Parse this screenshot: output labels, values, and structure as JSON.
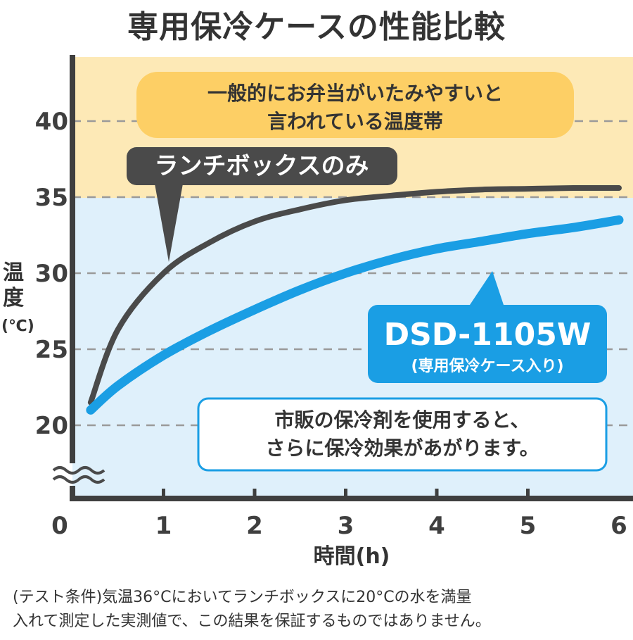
{
  "chart_data": {
    "type": "line",
    "title": "専用保冷ケースの性能比較",
    "xlabel": "時間(h)",
    "ylabel": [
      "温",
      "度",
      "(℃)"
    ],
    "xlim": [
      0,
      6
    ],
    "ylim": [
      20,
      45
    ],
    "x_ticks": [
      "0",
      "1",
      "2",
      "3",
      "4",
      "5",
      "6"
    ],
    "y_ticks": [
      "20",
      "25",
      "30",
      "35",
      "40"
    ],
    "grid": true,
    "zones": [
      {
        "name": "danger",
        "from": 35,
        "to": 45,
        "color": "#fde9b6",
        "label_lines": [
          "一般的にお弁当がいたみやすいと",
          "言われている温度帯"
        ]
      },
      {
        "name": "safe",
        "from": 20,
        "to": 35,
        "color": "#dff0fb"
      }
    ],
    "series": [
      {
        "name": "ランチボックスのみ",
        "color": "#4a4a4a",
        "x": [
          0.2,
          0.5,
          1,
          1.5,
          2,
          2.5,
          3,
          3.5,
          4,
          4.5,
          5,
          5.5,
          6
        ],
        "y": [
          21.5,
          26.3,
          30.0,
          32.0,
          33.4,
          34.2,
          34.8,
          35.1,
          35.35,
          35.5,
          35.55,
          35.6,
          35.6
        ]
      },
      {
        "name": "DSD-1105W",
        "sub": "(専用保冷ケース入り)",
        "color": "#1a9ee4",
        "x": [
          0.2,
          0.5,
          1,
          1.5,
          2,
          2.5,
          3,
          3.5,
          4,
          4.5,
          5,
          5.5,
          6
        ],
        "y": [
          21.0,
          22.6,
          24.6,
          26.2,
          27.6,
          28.9,
          30.0,
          30.9,
          31.6,
          32.1,
          32.6,
          33.0,
          33.5
        ]
      }
    ],
    "annotations": {
      "note_lines": [
        "市販の保冷剤を使用すると、",
        "さらに保冷効果があがります。"
      ]
    },
    "colors": {
      "axis": "#3f3f3f",
      "grid": "#9a9a9a",
      "zone_label_bg": "#fdcf65",
      "note_border": "#1a9ee4"
    }
  },
  "footnote": {
    "line1": "(テスト条件)気温36°Cにおいてランチボックスに20°Cの水を満量",
    "line2": "入れて測定した実測値で、この結果を保証するものではありません。"
  }
}
